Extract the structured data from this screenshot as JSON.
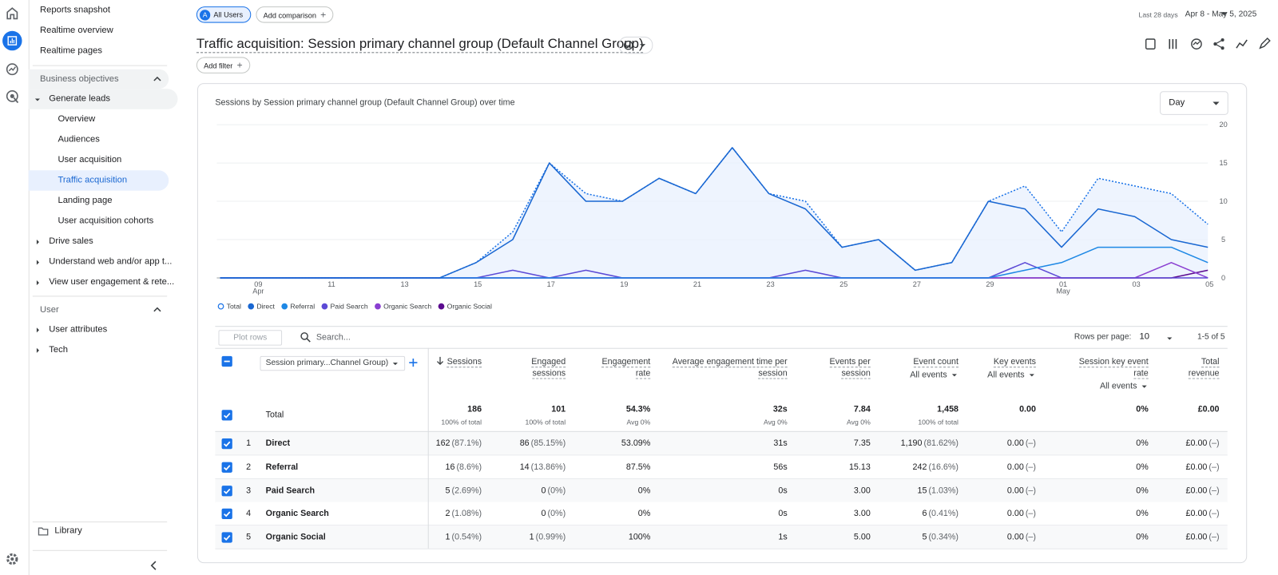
{
  "nav": {
    "top": [
      "Reports snapshot",
      "Realtime overview",
      "Realtime pages"
    ],
    "sections": [
      {
        "title": "Business objectives",
        "shaded": true,
        "items": [
          {
            "label": "Generate leads",
            "expanded": true,
            "children": [
              {
                "label": "Overview"
              },
              {
                "label": "Audiences"
              },
              {
                "label": "User acquisition"
              },
              {
                "label": "Traffic acquisition",
                "active": true
              },
              {
                "label": "Landing page"
              },
              {
                "label": "User acquisition cohorts"
              }
            ]
          },
          {
            "label": "Drive sales"
          },
          {
            "label": "Understand web and/or app t..."
          },
          {
            "label": "View user engagement & rete..."
          }
        ]
      },
      {
        "title": "User",
        "shaded": false,
        "items": [
          {
            "label": "User attributes"
          },
          {
            "label": "Tech"
          }
        ]
      }
    ],
    "library": "Library"
  },
  "header": {
    "segment_badge": "A",
    "segment": "All Users",
    "add_comparison": "Add comparison",
    "date_range_label": "Last 28 days",
    "date_range": "Apr 8 - May 5, 2025",
    "title": "Traffic acquisition: Session primary channel group (Default Channel Group)",
    "add_filter": "Add filter"
  },
  "chart": {
    "type": "line",
    "title": "Sessions by Session primary channel group (Default Channel Group) over time",
    "interval": "Day",
    "categories": [
      null,
      "09",
      null,
      "11",
      null,
      "13",
      null,
      "15",
      null,
      "17",
      null,
      "19",
      null,
      "21",
      null,
      "23",
      null,
      "25",
      null,
      "27",
      null,
      "29",
      null,
      "01",
      null,
      "03",
      null,
      "05"
    ],
    "month_labels": [
      null,
      "Apr",
      null,
      null,
      null,
      null,
      null,
      null,
      null,
      null,
      null,
      null,
      null,
      null,
      null,
      null,
      null,
      null,
      null,
      null,
      null,
      null,
      null,
      "May",
      null,
      null,
      null,
      null
    ],
    "ylim": [
      0,
      20
    ],
    "yticks": [
      0,
      5,
      10,
      15,
      20
    ],
    "grid": true,
    "series": [
      {
        "name": "Total",
        "color": "#1a73e8",
        "dotted": true,
        "area": true,
        "values": [
          0,
          0,
          0,
          0,
          0,
          0,
          0,
          2,
          6,
          15,
          11,
          10,
          13,
          11,
          17,
          11,
          10,
          4,
          5,
          1,
          2,
          10,
          12,
          6,
          13,
          12,
          11,
          7
        ]
      },
      {
        "name": "Direct",
        "color": "#1967d2",
        "values": [
          0,
          0,
          0,
          0,
          0,
          0,
          0,
          2,
          5,
          15,
          10,
          10,
          13,
          11,
          17,
          11,
          9,
          4,
          5,
          1,
          2,
          10,
          9,
          4,
          9,
          8,
          5,
          4
        ]
      },
      {
        "name": "Referral",
        "color": "#1e88e5",
        "values": [
          0,
          0,
          0,
          0,
          0,
          0,
          0,
          0,
          0,
          0,
          0,
          0,
          0,
          0,
          0,
          0,
          0,
          0,
          0,
          0,
          0,
          0,
          1,
          2,
          4,
          4,
          4,
          2
        ]
      },
      {
        "name": "Paid Search",
        "color": "#5c4ad6",
        "values": [
          0,
          0,
          0,
          0,
          0,
          0,
          0,
          0,
          1,
          0,
          1,
          0,
          0,
          0,
          0,
          0,
          1,
          0,
          0,
          0,
          0,
          0,
          2,
          0,
          0,
          0,
          0,
          0
        ]
      },
      {
        "name": "Organic Search",
        "color": "#8a3fd1",
        "values": [
          0,
          0,
          0,
          0,
          0,
          0,
          0,
          0,
          0,
          0,
          0,
          0,
          0,
          0,
          0,
          0,
          0,
          0,
          0,
          0,
          0,
          0,
          0,
          0,
          0,
          0,
          2,
          0
        ]
      },
      {
        "name": "Organic Social",
        "color": "#5b0a8f",
        "values": [
          0,
          0,
          0,
          0,
          0,
          0,
          0,
          0,
          0,
          0,
          0,
          0,
          0,
          0,
          0,
          0,
          0,
          0,
          0,
          0,
          0,
          0,
          0,
          0,
          0,
          0,
          0,
          1
        ]
      }
    ]
  },
  "table": {
    "plot_rows": "Plot rows",
    "search_placeholder": "Search...",
    "rows_per_page_label": "Rows per page:",
    "rows_per_page": "10",
    "range": "1-5 of 5",
    "dimension": "Session primary...Channel Group)",
    "columns": [
      {
        "label": "Sessions",
        "sorted": true
      },
      {
        "label": "Engaged sessions"
      },
      {
        "label": "Engagement rate"
      },
      {
        "label": "Average engagement time per session"
      },
      {
        "label": "Events per session"
      },
      {
        "label": "Event count",
        "filter": "All events"
      },
      {
        "label": "Key events",
        "filter": "All events"
      },
      {
        "label": "Session key event rate",
        "filter": "All events"
      },
      {
        "label": "Total revenue"
      }
    ],
    "total": {
      "label": "Total",
      "cells": [
        [
          "186",
          "100% of total"
        ],
        [
          "101",
          "100% of total"
        ],
        [
          "54.3%",
          "Avg 0%"
        ],
        [
          "32s",
          "Avg 0%"
        ],
        [
          "7.84",
          "Avg 0%"
        ],
        [
          "1,458",
          "100% of total"
        ],
        [
          "0.00"
        ],
        [
          "0%"
        ],
        [
          "£0.00"
        ]
      ]
    },
    "rows": [
      {
        "rank": "1",
        "name": "Direct",
        "cells": [
          [
            "162",
            "(87.1%)"
          ],
          [
            "86",
            "(85.15%)"
          ],
          [
            "53.09%"
          ],
          [
            "31s"
          ],
          [
            "7.35"
          ],
          [
            "1,190",
            "(81.62%)"
          ],
          [
            "0.00",
            "(–)"
          ],
          [
            "0%"
          ],
          [
            "£0.00",
            "(–)"
          ]
        ]
      },
      {
        "rank": "2",
        "name": "Referral",
        "cells": [
          [
            "16",
            "(8.6%)"
          ],
          [
            "14",
            "(13.86%)"
          ],
          [
            "87.5%"
          ],
          [
            "56s"
          ],
          [
            "15.13"
          ],
          [
            "242",
            "(16.6%)"
          ],
          [
            "0.00",
            "(–)"
          ],
          [
            "0%"
          ],
          [
            "£0.00",
            "(–)"
          ]
        ]
      },
      {
        "rank": "3",
        "name": "Paid Search",
        "cells": [
          [
            "5",
            "(2.69%)"
          ],
          [
            "0",
            "(0%)"
          ],
          [
            "0%"
          ],
          [
            "0s"
          ],
          [
            "3.00"
          ],
          [
            "15",
            "(1.03%)"
          ],
          [
            "0.00",
            "(–)"
          ],
          [
            "0%"
          ],
          [
            "£0.00",
            "(–)"
          ]
        ]
      },
      {
        "rank": "4",
        "name": "Organic Search",
        "cells": [
          [
            "2",
            "(1.08%)"
          ],
          [
            "0",
            "(0%)"
          ],
          [
            "0%"
          ],
          [
            "0s"
          ],
          [
            "3.00"
          ],
          [
            "6",
            "(0.41%)"
          ],
          [
            "0.00",
            "(–)"
          ],
          [
            "0%"
          ],
          [
            "£0.00",
            "(–)"
          ]
        ]
      },
      {
        "rank": "5",
        "name": "Organic Social",
        "cells": [
          [
            "1",
            "(0.54%)"
          ],
          [
            "1",
            "(0.99%)"
          ],
          [
            "100%"
          ],
          [
            "1s"
          ],
          [
            "5.00"
          ],
          [
            "5",
            "(0.34%)"
          ],
          [
            "0.00",
            "(–)"
          ],
          [
            "0%"
          ],
          [
            "£0.00",
            "(–)"
          ]
        ]
      }
    ]
  }
}
